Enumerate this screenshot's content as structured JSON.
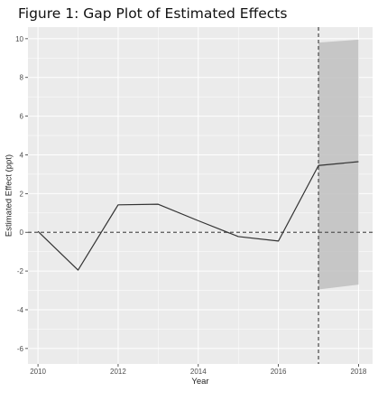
{
  "figure": {
    "title": "Figure 1: Gap Plot of Estimated Effects"
  },
  "chart_data": {
    "type": "line",
    "title": "Figure 1: Gap Plot of Estimated Effects",
    "xlabel": "Year",
    "ylabel": "Estimated Effect (ppt)",
    "xlim": [
      2009.75,
      2018.35
    ],
    "ylim": [
      -6.8,
      10.6
    ],
    "x_ticks": [
      2010,
      2012,
      2014,
      2016,
      2018
    ],
    "y_ticks": [
      -6,
      -4,
      -2,
      0,
      2,
      4,
      6,
      8,
      10
    ],
    "grid": true,
    "series": [
      {
        "x": [
          2010,
          2011,
          2012,
          2013,
          2014,
          2015,
          2016,
          2017,
          2018
        ],
        "values": [
          0.05,
          -1.95,
          1.42,
          1.45,
          0.6,
          -0.22,
          -0.45,
          3.45,
          3.65
        ]
      }
    ],
    "confidence_band": {
      "x": [
        2017,
        2018
      ],
      "lower": [
        -2.95,
        -2.7
      ],
      "upper": [
        9.8,
        9.95
      ]
    },
    "reference_lines": {
      "horizontal_y": 0,
      "vertical_x": 2017
    },
    "colors": {
      "panel": "#ebebeb",
      "grid": "#ffffff",
      "line": "#333333",
      "band": "#bfbfbf",
      "reference": "#555555"
    }
  }
}
